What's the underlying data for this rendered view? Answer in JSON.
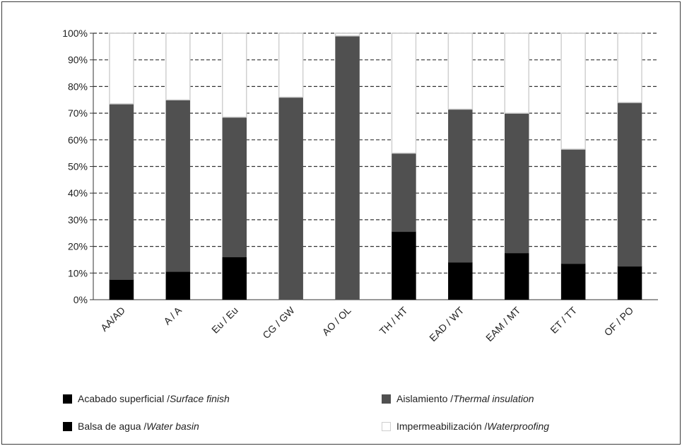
{
  "chart_data": {
    "type": "bar",
    "stacked": true,
    "percent": true,
    "title": "",
    "xlabel": "",
    "ylabel": "",
    "ylim": [
      0,
      100
    ],
    "yticks": [
      "0%",
      "10%",
      "20%",
      "30%",
      "40%",
      "50%",
      "60%",
      "70%",
      "80%",
      "90%",
      "100%"
    ],
    "grid": "horizontal dashed",
    "categories": [
      "AA/AD",
      "A / A",
      "Eu / Eu",
      "CG / GW",
      "AO / OL",
      "TH / HT",
      "EAD / WT",
      "EAM / MT",
      "ET / TT",
      "OF / PO"
    ],
    "series": [
      {
        "name": "Acabado superficial / Surface finish",
        "color": "#000000",
        "values": [
          7.5,
          10.5,
          16,
          0,
          0,
          25.5,
          14,
          17.5,
          13.5,
          12.5
        ]
      },
      {
        "name": "Balsa de agua / Water basin",
        "color": "#000000",
        "values": [
          0,
          0,
          0,
          0,
          0,
          0,
          0,
          0,
          0,
          0
        ]
      },
      {
        "name": "Aislamiento / Thermal insulation",
        "color": "#505050",
        "values": [
          66,
          64.5,
          52.5,
          76,
          99,
          29.5,
          57.5,
          52.5,
          43,
          61.5
        ]
      },
      {
        "name": "Impermeabilización / Waterproofing",
        "color": "#ffffff",
        "values": [
          26.5,
          25,
          31.5,
          24,
          1,
          45,
          28.5,
          30,
          43.5,
          26
        ]
      }
    ],
    "legend_position": "bottom"
  },
  "legend": {
    "items": [
      {
        "plain": "Acabado superficial / ",
        "italic": "Surface finish",
        "color": "#000000"
      },
      {
        "plain": "Aislamiento / ",
        "italic": "Thermal insulation",
        "color": "#505050"
      },
      {
        "plain": "Balsa de agua / ",
        "italic": "Water basin",
        "color": "#000000"
      },
      {
        "plain": "Impermeabilización / ",
        "italic": "Waterproofing",
        "color": "#ffffff"
      }
    ]
  }
}
